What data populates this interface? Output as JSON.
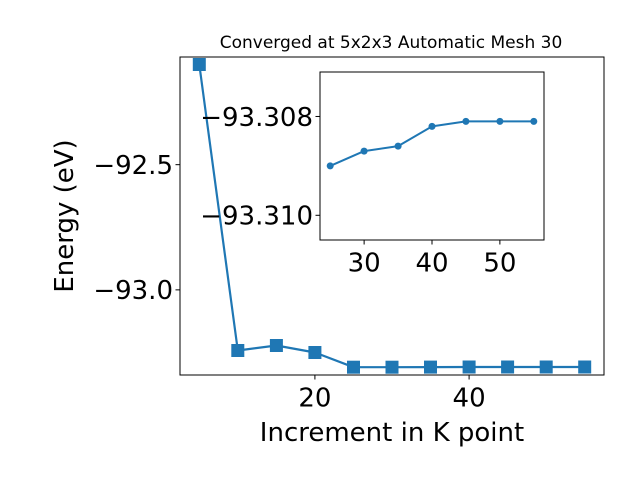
{
  "chart_data": [
    {
      "type": "line",
      "title": "Converged at 5x2x3 Automatic Mesh 30",
      "xlabel": "Increment in K point",
      "ylabel": "Energy (eV)",
      "x": [
        5,
        10,
        15,
        20,
        25,
        30,
        35,
        40,
        45,
        50,
        55
      ],
      "series": [
        {
          "values": [
            -92.1,
            -93.242,
            -93.222,
            -93.25,
            -93.309,
            -93.3087,
            -93.3086,
            -93.3082,
            -93.3081,
            -93.3081,
            -93.3081
          ],
          "marker": "square",
          "color": "#1f77b4"
        }
      ],
      "xlim": [
        2.5,
        57.5
      ],
      "ylim": [
        -93.34,
        -92.07
      ],
      "xticks": [
        20,
        40
      ],
      "xtick_labels": [
        "20",
        "40"
      ],
      "yticks": [
        -92.5,
        -93.0
      ],
      "ytick_labels": [
        "−92.5",
        "−93.0"
      ],
      "grid": false
    },
    {
      "type": "line",
      "x": [
        25,
        30,
        35,
        40,
        45,
        50,
        55
      ],
      "series": [
        {
          "values": [
            -93.309,
            -93.3087,
            -93.3086,
            -93.3082,
            -93.3081,
            -93.3081,
            -93.3081
          ],
          "marker": "circle",
          "color": "#1f77b4"
        }
      ],
      "xlim": [
        23.5,
        56.5
      ],
      "ylim": [
        -93.3105,
        -93.3071
      ],
      "xticks": [
        30,
        40,
        50
      ],
      "xtick_labels": [
        "30",
        "40",
        "50"
      ],
      "yticks": [
        -93.31,
        -93.308
      ],
      "ytick_labels": [
        "−93.310",
        "−93.308"
      ],
      "grid": false
    }
  ]
}
